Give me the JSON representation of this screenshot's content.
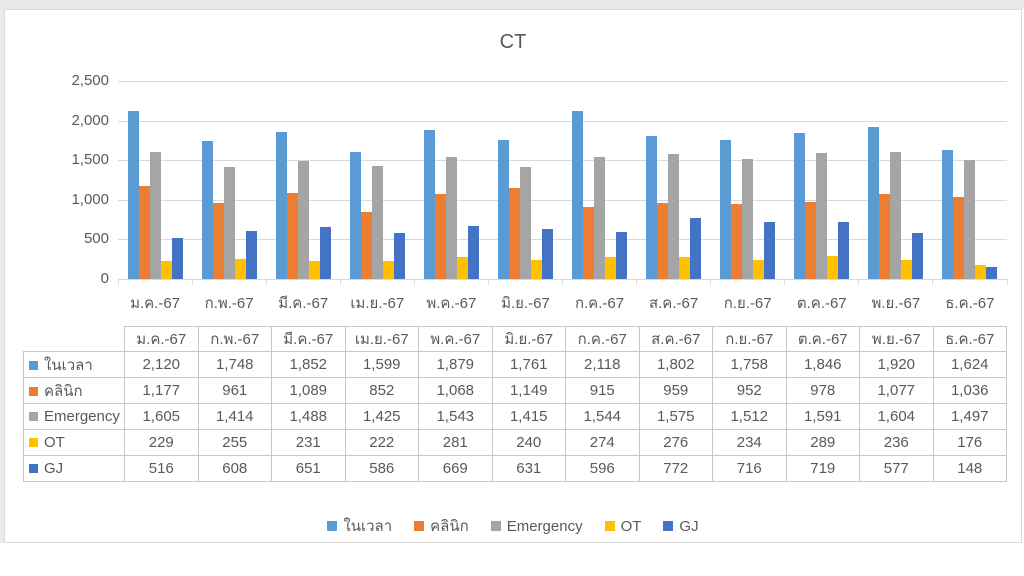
{
  "chart_data": {
    "type": "bar",
    "title": "CT",
    "categories": [
      "ม.ค.-67",
      "ก.พ.-67",
      "มี.ค.-67",
      "เม.ย.-67",
      "พ.ค.-67",
      "มิ.ย.-67",
      "ก.ค.-67",
      "ส.ค.-67",
      "ก.ย.-67",
      "ต.ค.-67",
      "พ.ย.-67",
      "ธ.ค.-67"
    ],
    "series": [
      {
        "name": "ในเวลา",
        "color": "#5B9BD5",
        "values": [
          2120,
          1748,
          1852,
          1599,
          1879,
          1761,
          2118,
          1802,
          1758,
          1846,
          1920,
          1624
        ]
      },
      {
        "name": "คลินิก",
        "color": "#ED7D31",
        "values": [
          1177,
          961,
          1089,
          852,
          1068,
          1149,
          915,
          959,
          952,
          978,
          1077,
          1036
        ]
      },
      {
        "name": "Emergency",
        "color": "#A5A5A5",
        "values": [
          1605,
          1414,
          1488,
          1425,
          1543,
          1415,
          1544,
          1575,
          1512,
          1591,
          1604,
          1497
        ]
      },
      {
        "name": "OT",
        "color": "#FFC000",
        "values": [
          229,
          255,
          231,
          222,
          281,
          240,
          274,
          276,
          234,
          289,
          236,
          176
        ]
      },
      {
        "name": "GJ",
        "color": "#4472C4",
        "values": [
          516,
          608,
          651,
          586,
          669,
          631,
          596,
          772,
          716,
          719,
          577,
          148
        ]
      }
    ],
    "ylim": [
      0,
      2500
    ],
    "ytick_step": 500,
    "ytick_labels": [
      "0",
      "500",
      "1,000",
      "1,500",
      "2,000",
      "2,500"
    ],
    "grid": true,
    "legend_position": "bottom",
    "data_table_shown": true,
    "colors": {
      "text": "#595959",
      "gridline": "#D9D9D9",
      "table_border": "#C6C6C6"
    }
  }
}
